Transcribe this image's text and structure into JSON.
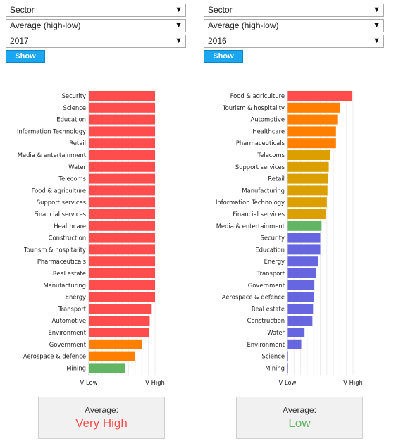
{
  "colors": {
    "very_high": "#ff4d4d",
    "high": "#ff7f00",
    "mid": "#dba000",
    "positive": "#62b562",
    "low": "#6666e0",
    "button": "#1aa6f0"
  },
  "left": {
    "select_group": "Sector",
    "select_measure": "Average (high-low)",
    "select_year": "2017",
    "show_label": "Show",
    "summary_label": "Average:",
    "summary_value": "Very High",
    "summary_color": "#ff4d4d"
  },
  "right": {
    "select_group": "Sector",
    "select_measure": "Average (high-low)",
    "select_year": "2016",
    "show_label": "Show",
    "summary_label": "Average:",
    "summary_value": "Low",
    "summary_color": "#62b562"
  },
  "chart_data": [
    {
      "type": "bar",
      "orientation": "horizontal",
      "x_tick_labels": [
        "V Low",
        "V High"
      ],
      "xlim": [
        0,
        1
      ],
      "categories": [
        "Security",
        "Science",
        "Education",
        "Information Technology",
        "Retail",
        "Media & entertainment",
        "Water",
        "Telecoms",
        "Food & agriculture",
        "Support services",
        "Financial services",
        "Healthcare",
        "Construction",
        "Tourism & hospitality",
        "Pharmaceuticals",
        "Real estate",
        "Manufacturing",
        "Energy",
        "Transport",
        "Automotive",
        "Environment",
        "Government",
        "Aerospace & defence",
        "Mining"
      ],
      "values": [
        1.0,
        1.0,
        1.0,
        1.0,
        1.0,
        1.0,
        1.0,
        1.0,
        1.0,
        1.0,
        1.0,
        1.0,
        1.0,
        1.0,
        1.0,
        1.0,
        1.0,
        1.0,
        0.95,
        0.92,
        0.91,
        0.8,
        0.7,
        0.55
      ],
      "bar_colors": [
        "#ff4d4d",
        "#ff4d4d",
        "#ff4d4d",
        "#ff4d4d",
        "#ff4d4d",
        "#ff4d4d",
        "#ff4d4d",
        "#ff4d4d",
        "#ff4d4d",
        "#ff4d4d",
        "#ff4d4d",
        "#ff4d4d",
        "#ff4d4d",
        "#ff4d4d",
        "#ff4d4d",
        "#ff4d4d",
        "#ff4d4d",
        "#ff4d4d",
        "#ff4d4d",
        "#ff4d4d",
        "#ff4d4d",
        "#ff7f00",
        "#ff7f00",
        "#62b562"
      ],
      "grid": true
    },
    {
      "type": "bar",
      "orientation": "horizontal",
      "x_tick_labels": [
        "V Low",
        "V High"
      ],
      "xlim": [
        0,
        1
      ],
      "categories": [
        "Food & agriculture",
        "Tourism & hospitality",
        "Automotive",
        "Healthcare",
        "Pharmaceuticals",
        "Telecoms",
        "Support services",
        "Retail",
        "Manufacturing",
        "Information Technology",
        "Financial services",
        "Media & entertainment",
        "Security",
        "Education",
        "Energy",
        "Transport",
        "Government",
        "Aerospace & defence",
        "Real estate",
        "Construction",
        "Water",
        "Environment",
        "Science",
        "Mining"
      ],
      "values": [
        0.99,
        0.8,
        0.76,
        0.74,
        0.74,
        0.65,
        0.63,
        0.62,
        0.61,
        0.6,
        0.58,
        0.52,
        0.5,
        0.5,
        0.47,
        0.43,
        0.41,
        0.4,
        0.39,
        0.38,
        0.26,
        0.21,
        0.01,
        0.01
      ],
      "bar_colors": [
        "#ff4d4d",
        "#ff7f00",
        "#ff7f00",
        "#ff7f00",
        "#ff7f00",
        "#dba000",
        "#dba000",
        "#dba000",
        "#dba000",
        "#dba000",
        "#dba000",
        "#62b562",
        "#6666e0",
        "#6666e0",
        "#6666e0",
        "#6666e0",
        "#6666e0",
        "#6666e0",
        "#6666e0",
        "#6666e0",
        "#6666e0",
        "#6666e0",
        "#6666e0",
        "#6666e0"
      ],
      "grid": true
    }
  ]
}
